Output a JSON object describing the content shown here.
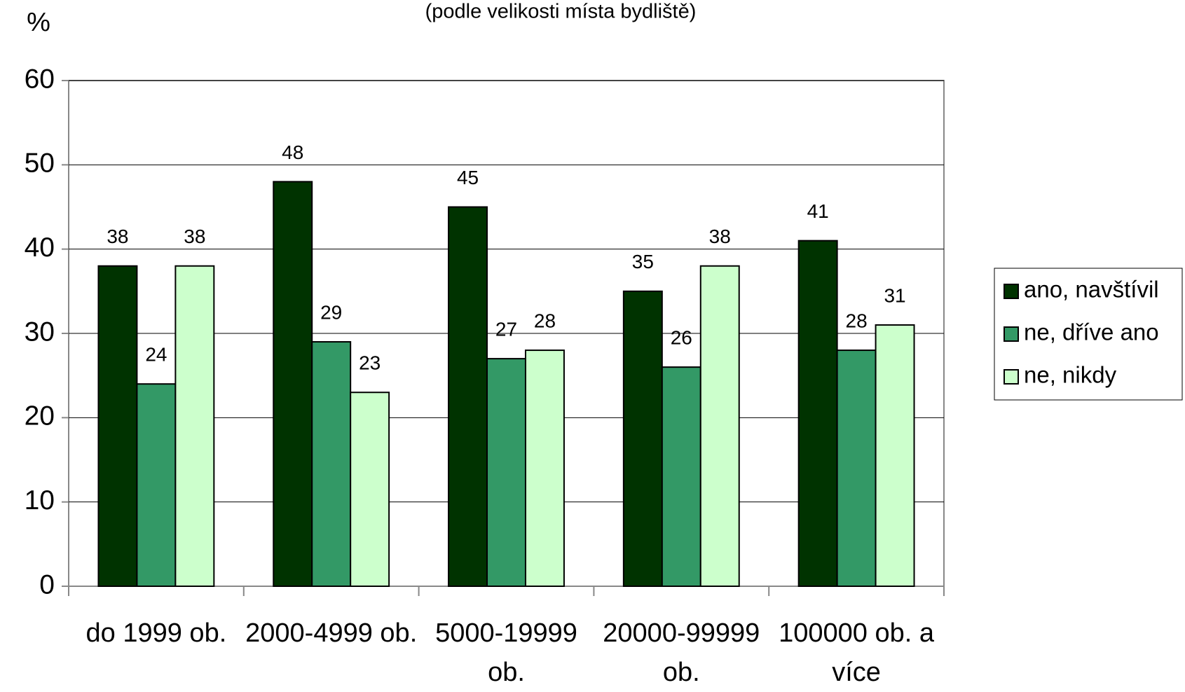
{
  "chart_data": {
    "type": "bar",
    "subtitle": "(podle velikosti místa bydliště)",
    "y_label": "%",
    "categories": [
      "do 1999 ob.",
      "2000-4999 ob.",
      "5000-19999 ob.",
      "20000-99999 ob.",
      "100000 ob. a více"
    ],
    "series": [
      {
        "name": "ano, navštívil",
        "color": "#003300",
        "values": [
          38,
          48,
          45,
          35,
          41
        ]
      },
      {
        "name": "ne, dříve ano",
        "color": "#339966",
        "values": [
          24,
          29,
          27,
          26,
          28
        ]
      },
      {
        "name": "ne, nikdy",
        "color": "#ccffcc",
        "values": [
          38,
          23,
          28,
          38,
          31
        ]
      }
    ],
    "ylim": [
      0,
      60
    ],
    "yticks": [
      0,
      10,
      20,
      30,
      40,
      50,
      60
    ],
    "grid": true,
    "legend": "right"
  }
}
